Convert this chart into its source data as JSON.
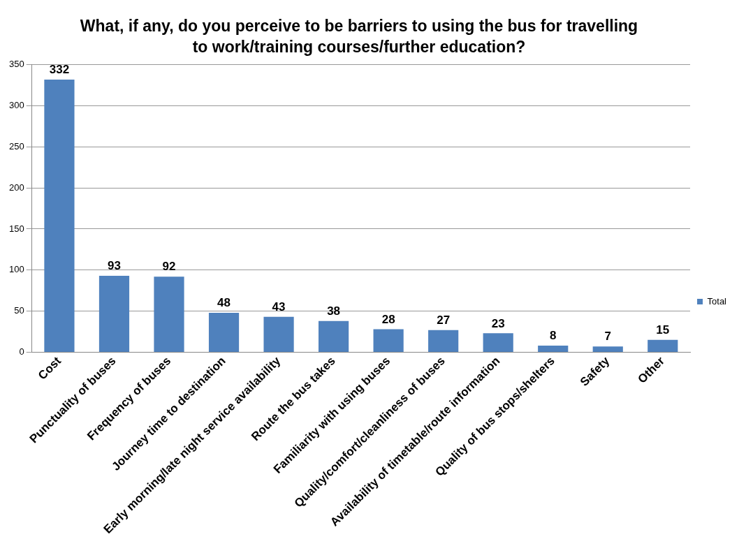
{
  "chart_data": {
    "type": "bar",
    "title": "What, if any, do you perceive to be barriers to using the bus for travelling to work/training courses/further education?",
    "categories": [
      "Cost",
      "Punctuality of buses",
      "Frequency of buses",
      "Journey time to destination",
      "Early morning/late night service availability",
      "Route the bus takes",
      "Familiarity with using buses",
      "Quality/comfort/cleanliness of buses",
      "Availability of timetable/route information",
      "Quality of bus stops/shelters",
      "Safety",
      "Other"
    ],
    "series": [
      {
        "name": "Total",
        "color": "#4f81bd",
        "values": [
          332,
          93,
          92,
          48,
          43,
          38,
          28,
          27,
          23,
          8,
          7,
          15
        ]
      }
    ],
    "ylim": [
      0,
      350
    ],
    "yticks": [
      0,
      50,
      100,
      150,
      200,
      250,
      300,
      350
    ],
    "grid": "y",
    "legend": "right",
    "data_labels": true
  }
}
